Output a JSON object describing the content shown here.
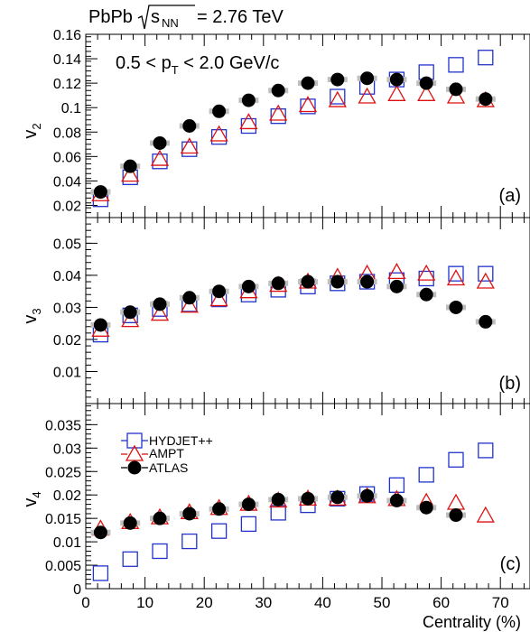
{
  "header": {
    "system": "PbPb",
    "sqrt_label": "s",
    "sqrt_sub": "NN",
    "energy": "= 2.76 TeV"
  },
  "colors": {
    "hydjet": "#2233cc",
    "ampt": "#dd1111",
    "atlas": "#000000",
    "atlas_err_band": "#bfbfbf"
  },
  "chart_data": {
    "type": "scatter",
    "x": [
      2.5,
      7.5,
      12.5,
      17.5,
      22.5,
      27.5,
      32.5,
      37.5,
      42.5,
      47.5,
      52.5,
      57.5,
      62.5,
      67.5
    ],
    "xlabel": "Centrality (%)",
    "xlim": [
      0,
      75
    ],
    "xticks": [
      0,
      10,
      20,
      30,
      40,
      50,
      60,
      70
    ],
    "legend": {
      "placement": "panel (c), upper-left",
      "entries": [
        {
          "label": "HYDJET++",
          "marker": "open-square",
          "color": "#2233cc"
        },
        {
          "label": "AMPT",
          "marker": "open-triangle",
          "color": "#dd1111"
        },
        {
          "label": "ATLAS",
          "marker": "filled-circle",
          "color": "#000000"
        }
      ]
    },
    "panels": [
      {
        "label": "(a)",
        "ylabel_main": "v",
        "ylabel_sub": "2",
        "annotation": {
          "pre": "0.5 < p",
          "sub": "T",
          "post": " < 2.0 GeV/c"
        },
        "ylim": [
          0.01,
          0.16
        ],
        "yticks": [
          0.02,
          0.04,
          0.06,
          0.08,
          0.1,
          0.12,
          0.14,
          0.16
        ],
        "ytick_labels": [
          "0.02",
          "0.04",
          "0.06",
          "0.08",
          "0.1",
          "0.12",
          "0.14",
          "0.16"
        ],
        "series": [
          {
            "name": "HYDJET++",
            "values": [
              0.025,
              0.043,
              0.056,
              0.066,
              0.076,
              0.085,
              0.093,
              0.101,
              0.109,
              0.117,
              0.123,
              0.129,
              0.135,
              0.141
            ]
          },
          {
            "name": "AMPT",
            "values": [
              0.029,
              0.045,
              0.058,
              0.068,
              0.078,
              0.088,
              0.095,
              0.102,
              0.106,
              0.109,
              0.111,
              0.111,
              0.109,
              0.106
            ]
          },
          {
            "name": "ATLAS",
            "values": [
              0.031,
              0.052,
              0.071,
              0.085,
              0.097,
              0.106,
              0.114,
              0.12,
              0.123,
              0.124,
              0.123,
              0.12,
              0.115,
              0.107
            ]
          }
        ]
      },
      {
        "label": "(b)",
        "ylabel_main": "v",
        "ylabel_sub": "3",
        "ylim": [
          0.0,
          0.058
        ],
        "yticks": [
          0.01,
          0.02,
          0.03,
          0.04,
          0.05
        ],
        "ytick_labels": [
          "0.01",
          "0.02",
          "0.03",
          "0.04",
          "0.05"
        ],
        "series": [
          {
            "name": "HYDJET++",
            "values": [
              0.0215,
              0.0275,
              0.0295,
              0.031,
              0.0325,
              0.034,
              0.0355,
              0.0365,
              0.0375,
              0.038,
              0.0385,
              0.039,
              0.0405,
              0.0405
            ]
          },
          {
            "name": "AMPT",
            "values": [
              0.023,
              0.026,
              0.028,
              0.0305,
              0.0325,
              0.035,
              0.037,
              0.038,
              0.0395,
              0.0405,
              0.041,
              0.0405,
              0.039,
              0.038
            ]
          },
          {
            "name": "ATLAS",
            "values": [
              0.0245,
              0.0285,
              0.031,
              0.033,
              0.035,
              0.0365,
              0.0375,
              0.038,
              0.038,
              0.038,
              0.0365,
              0.034,
              0.03,
              0.0255
            ]
          }
        ]
      },
      {
        "label": "(c)",
        "ylabel_main": "v",
        "ylabel_sub": "4",
        "ylim": [
          0.0,
          0.0395
        ],
        "yticks": [
          0,
          0.005,
          0.01,
          0.015,
          0.02,
          0.025,
          0.03,
          0.035
        ],
        "ytick_labels": [
          "0",
          "0.005",
          "0.01",
          "0.015",
          "0.02",
          "0.025",
          "0.03",
          "0.035"
        ],
        "series": [
          {
            "name": "HYDJET++",
            "values": [
              0.0033,
              0.0063,
              0.008,
              0.0101,
              0.0123,
              0.0138,
              0.0162,
              0.0178,
              0.0192,
              0.0202,
              0.0221,
              0.0243,
              0.0275,
              0.0295
            ]
          },
          {
            "name": "AMPT",
            "values": [
              0.0128,
              0.0142,
              0.0152,
              0.0163,
              0.0172,
              0.0181,
              0.0188,
              0.0192,
              0.0192,
              0.0197,
              0.0191,
              0.0185,
              0.0183,
              0.0156
            ]
          },
          {
            "name": "ATLAS",
            "values": [
              0.012,
              0.014,
              0.015,
              0.016,
              0.017,
              0.018,
              0.019,
              0.0192,
              0.0195,
              0.0198,
              0.0188,
              0.0173,
              0.0157,
              null
            ]
          }
        ]
      }
    ]
  }
}
